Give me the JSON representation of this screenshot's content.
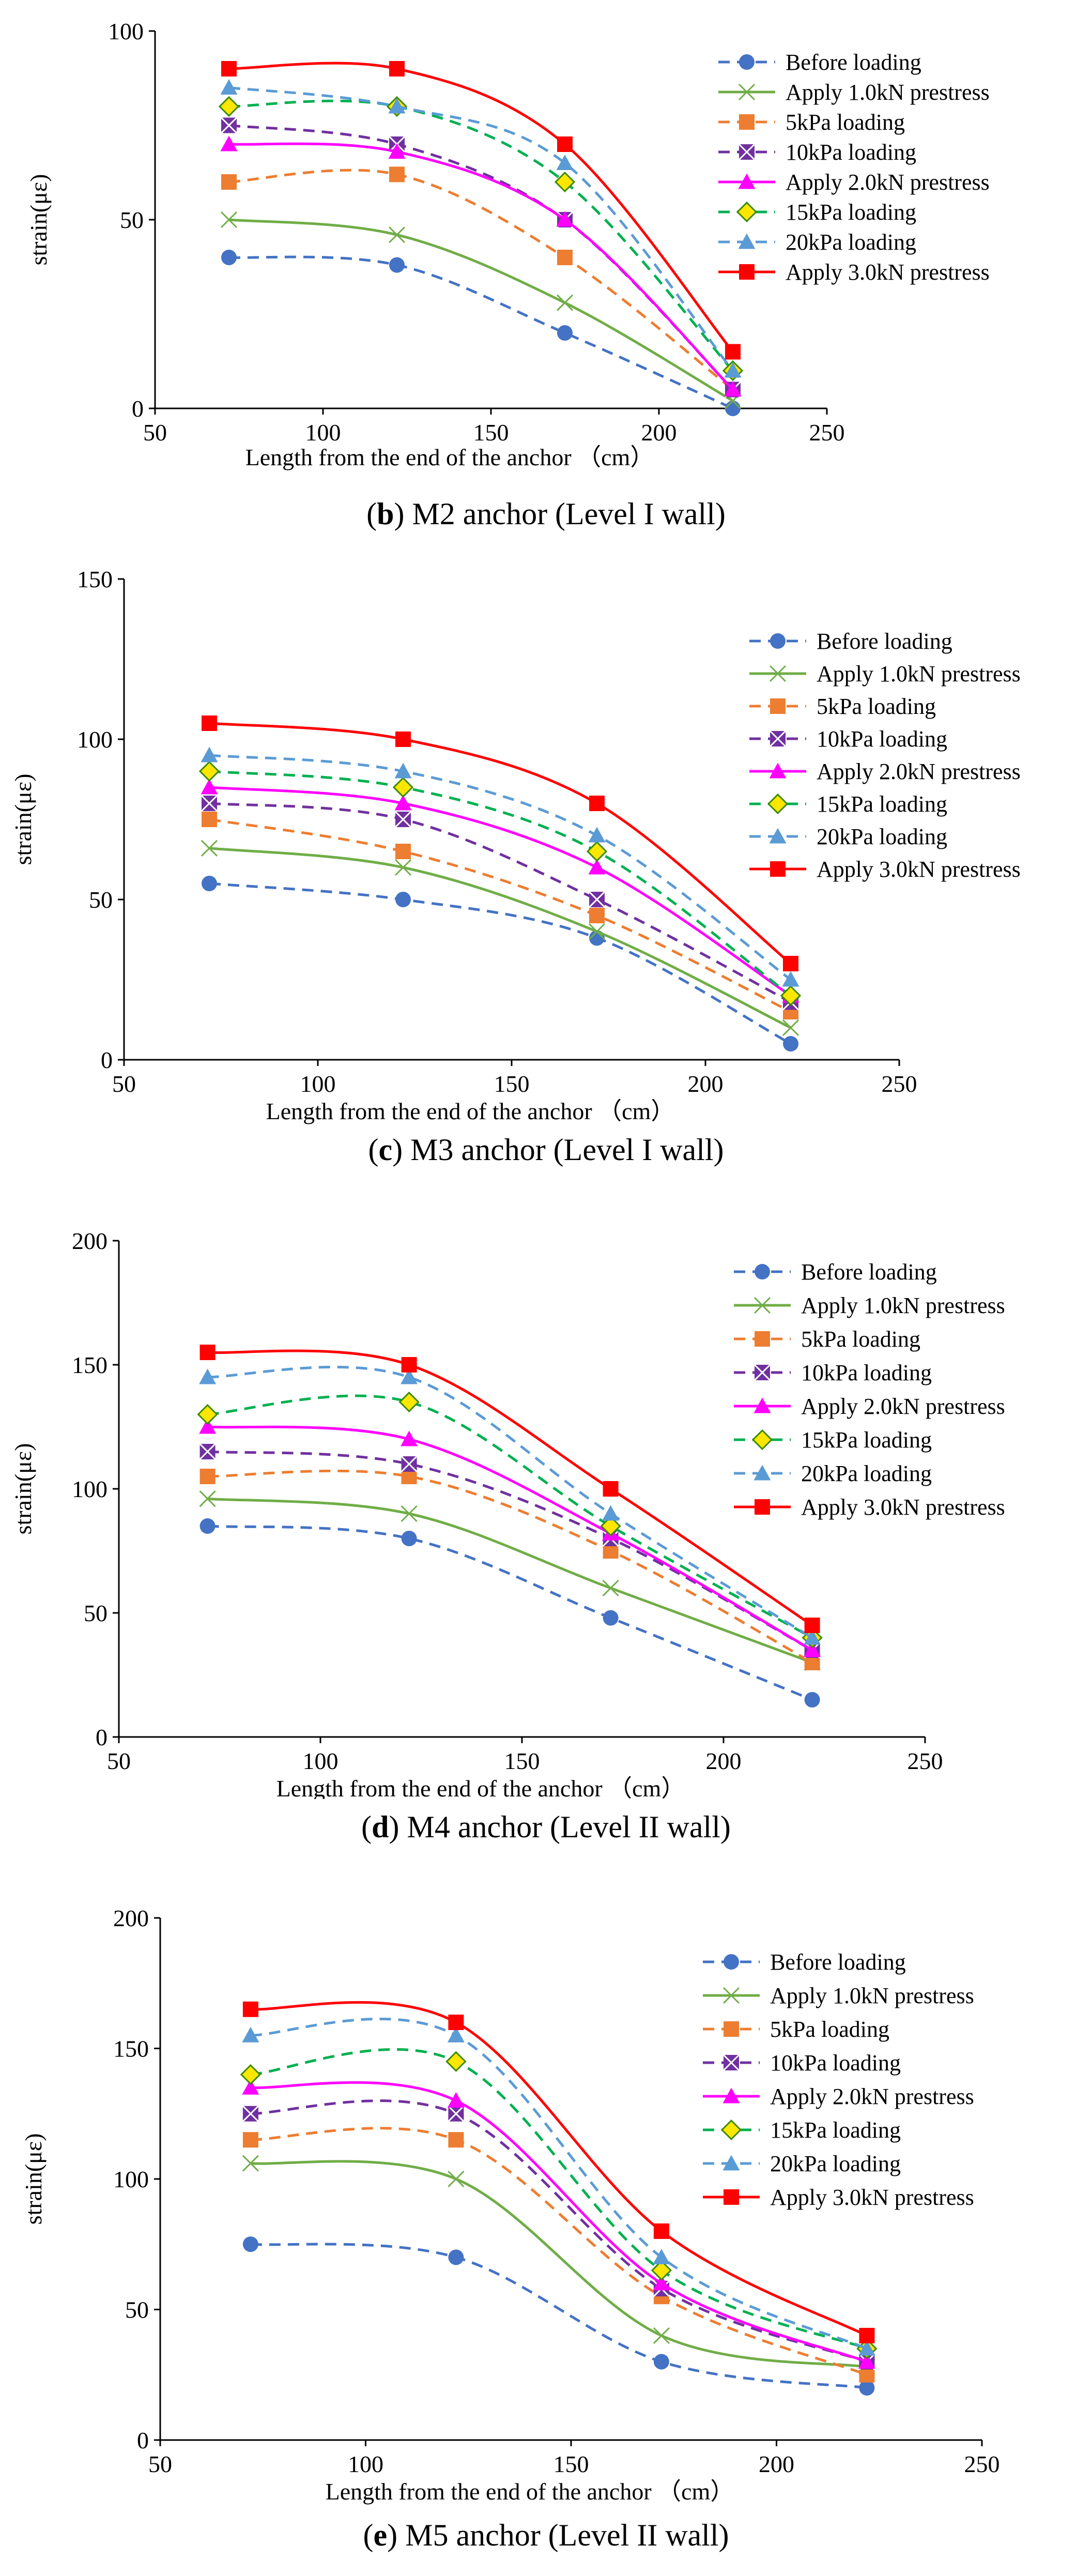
{
  "series_styles": [
    {
      "color": "#4472C4",
      "marker": "circle",
      "dash": true
    },
    {
      "color": "#70AD47",
      "marker": "x",
      "dash": false
    },
    {
      "color": "#ED7D31",
      "marker": "square",
      "dash": true
    },
    {
      "color": "#7030A0",
      "marker": "xsquare",
      "dash": true
    },
    {
      "color": "#FF00FF",
      "marker": "triangle",
      "dash": false
    },
    {
      "color": "#00B050",
      "marker": "diamond",
      "dash": true
    },
    {
      "color": "#5B9BD5",
      "marker": "triangle",
      "dash": true
    },
    {
      "color": "#FF0000",
      "marker": "square",
      "dash": false
    }
  ],
  "chart_data": [
    {
      "type": "line",
      "caption_letter": "b",
      "caption_text": "M2 anchor (Level I wall)",
      "xlabel": "Length from the end of the anchor （cm）",
      "ylabel": "strain(με)",
      "xlim": [
        50,
        250
      ],
      "ylim": [
        0,
        100
      ],
      "xticks": [
        50,
        100,
        150,
        200,
        250
      ],
      "yticks": [
        0,
        50,
        100
      ],
      "x": [
        72,
        122,
        172,
        222
      ],
      "series": [
        {
          "name": "Before loading",
          "values": [
            40,
            38,
            20,
            0
          ]
        },
        {
          "name": "Apply 1.0kN prestress",
          "values": [
            50,
            46,
            28,
            2
          ]
        },
        {
          "name": "5kPa loading",
          "values": [
            60,
            62,
            40,
            5
          ]
        },
        {
          "name": "10kPa loading",
          "values": [
            75,
            70,
            50,
            5
          ]
        },
        {
          "name": "Apply 2.0kN prestress",
          "values": [
            70,
            68,
            50,
            5
          ]
        },
        {
          "name": "15kPa loading",
          "values": [
            80,
            80,
            60,
            10
          ]
        },
        {
          "name": "20kPa loading",
          "values": [
            85,
            80,
            65,
            10
          ]
        },
        {
          "name": "Apply 3.0kN prestress",
          "values": [
            90,
            90,
            70,
            15
          ]
        }
      ]
    },
    {
      "type": "line",
      "caption_letter": "c",
      "caption_text": "M3 anchor (Level I wall)",
      "xlabel": "Length from the end of the anchor （cm）",
      "ylabel": "strain(με)",
      "xlim": [
        50,
        250
      ],
      "ylim": [
        0,
        150
      ],
      "xticks": [
        50,
        100,
        150,
        200,
        250
      ],
      "yticks": [
        0,
        50,
        100,
        150
      ],
      "x": [
        72,
        122,
        172,
        222
      ],
      "series": [
        {
          "name": "Before loading",
          "values": [
            55,
            50,
            38,
            5
          ]
        },
        {
          "name": "Apply 1.0kN prestress",
          "values": [
            66,
            60,
            40,
            10
          ]
        },
        {
          "name": "5kPa loading",
          "values": [
            75,
            65,
            45,
            15
          ]
        },
        {
          "name": "10kPa loading",
          "values": [
            80,
            75,
            50,
            18
          ]
        },
        {
          "name": "Apply 2.0kN prestress",
          "values": [
            85,
            80,
            60,
            20
          ]
        },
        {
          "name": "15kPa loading",
          "values": [
            90,
            85,
            65,
            20
          ]
        },
        {
          "name": "20kPa loading",
          "values": [
            95,
            90,
            70,
            25
          ]
        },
        {
          "name": "Apply 3.0kN prestress",
          "values": [
            105,
            100,
            80,
            30
          ]
        }
      ]
    },
    {
      "type": "line",
      "caption_letter": "d",
      "caption_text": "M4 anchor (Level II wall)",
      "xlabel": "Length from the end of the anchor （cm）",
      "ylabel": "strain(με)",
      "xlim": [
        50,
        250
      ],
      "ylim": [
        0,
        200
      ],
      "xticks": [
        50,
        100,
        150,
        200,
        250
      ],
      "yticks": [
        0,
        50,
        100,
        150,
        200
      ],
      "x": [
        72,
        122,
        172,
        222
      ],
      "series": [
        {
          "name": "Before loading",
          "values": [
            85,
            80,
            48,
            15
          ]
        },
        {
          "name": "Apply 1.0kN prestress",
          "values": [
            96,
            90,
            60,
            30
          ]
        },
        {
          "name": "5kPa loading",
          "values": [
            105,
            105,
            75,
            30
          ]
        },
        {
          "name": "10kPa loading",
          "values": [
            115,
            110,
            80,
            35
          ]
        },
        {
          "name": "Apply 2.0kN prestress",
          "values": [
            125,
            120,
            82,
            35
          ]
        },
        {
          "name": "15kPa loading",
          "values": [
            130,
            135,
            85,
            40
          ]
        },
        {
          "name": "20kPa loading",
          "values": [
            145,
            145,
            90,
            40
          ]
        },
        {
          "name": "Apply 3.0kN prestress",
          "values": [
            155,
            150,
            100,
            45
          ]
        }
      ]
    },
    {
      "type": "line",
      "caption_letter": "e",
      "caption_text": "M5 anchor (Level II wall)",
      "xlabel": "Length from the end of the anchor （cm）",
      "ylabel": "strain(με)",
      "xlim": [
        50,
        250
      ],
      "ylim": [
        0,
        200
      ],
      "xticks": [
        50,
        100,
        150,
        200,
        250
      ],
      "yticks": [
        0,
        50,
        100,
        150,
        200
      ],
      "x": [
        72,
        122,
        172,
        222
      ],
      "series": [
        {
          "name": "Before loading",
          "values": [
            75,
            70,
            30,
            20
          ]
        },
        {
          "name": "Apply 1.0kN prestress",
          "values": [
            106,
            100,
            40,
            28
          ]
        },
        {
          "name": "5kPa loading",
          "values": [
            115,
            115,
            55,
            25
          ]
        },
        {
          "name": "10kPa loading",
          "values": [
            125,
            125,
            58,
            30
          ]
        },
        {
          "name": "Apply 2.0kN prestress",
          "values": [
            135,
            130,
            60,
            30
          ]
        },
        {
          "name": "15kPa loading",
          "values": [
            140,
            145,
            65,
            35
          ]
        },
        {
          "name": "20kPa loading",
          "values": [
            155,
            155,
            70,
            35
          ]
        },
        {
          "name": "Apply 3.0kN prestress",
          "values": [
            165,
            160,
            80,
            40
          ]
        }
      ]
    }
  ]
}
